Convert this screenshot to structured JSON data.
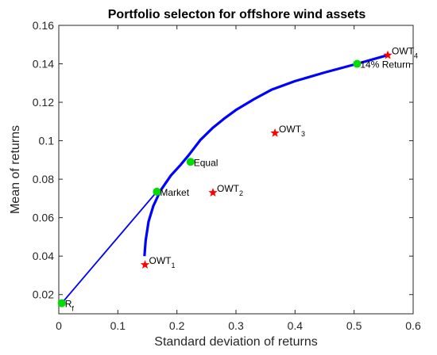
{
  "chart_data": {
    "type": "scatter",
    "title": "Portfolio selecton for offshore wind assets",
    "xlabel": "Standard deviation of returns",
    "ylabel": "Mean of returns",
    "xlim": [
      0,
      0.6
    ],
    "ylim": [
      0.01,
      0.16
    ],
    "xticks": [
      "0",
      "0.1",
      "0.2",
      "0.3",
      "0.4",
      "0.5",
      "0.6"
    ],
    "yticks": [
      "0.02",
      "0.04",
      "0.06",
      "0.08",
      "0.1",
      "0.12",
      "0.14",
      "0.16"
    ],
    "grid": false,
    "colors": {
      "frontier": "#0000ff",
      "assets": "#ff0000",
      "portfolios": "#00dd00",
      "axes": "#262626"
    },
    "frontier": {
      "x": [
        0.145,
        0.147,
        0.152,
        0.16,
        0.172,
        0.19,
        0.205,
        0.22,
        0.24,
        0.26,
        0.28,
        0.3,
        0.33,
        0.36,
        0.4,
        0.45,
        0.505,
        0.557
      ],
      "y": [
        0.04,
        0.048,
        0.058,
        0.066,
        0.074,
        0.082,
        0.087,
        0.0925,
        0.1005,
        0.1065,
        0.1115,
        0.116,
        0.1215,
        0.1265,
        0.131,
        0.1355,
        0.14,
        0.1445
      ]
    },
    "capital_market_line": {
      "x": [
        0.005,
        0.166
      ],
      "y": [
        0.0155,
        0.0735
      ]
    },
    "assets": [
      {
        "name": "OWT",
        "sub": "1",
        "x": 0.146,
        "y": 0.0355
      },
      {
        "name": "OWT",
        "sub": "2",
        "x": 0.261,
        "y": 0.073
      },
      {
        "name": "OWT",
        "sub": "3",
        "x": 0.366,
        "y": 0.104
      },
      {
        "name": "OWT",
        "sub": "4",
        "x": 0.557,
        "y": 0.1445
      }
    ],
    "portfolios": [
      {
        "name": "R",
        "sub": "f",
        "x": 0.005,
        "y": 0.0155
      },
      {
        "name": "Market",
        "sub": "",
        "x": 0.166,
        "y": 0.0735
      },
      {
        "name": "Equal",
        "sub": "",
        "x": 0.223,
        "y": 0.089
      },
      {
        "name": "14% Return",
        "sub": "",
        "x": 0.505,
        "y": 0.14
      }
    ]
  }
}
